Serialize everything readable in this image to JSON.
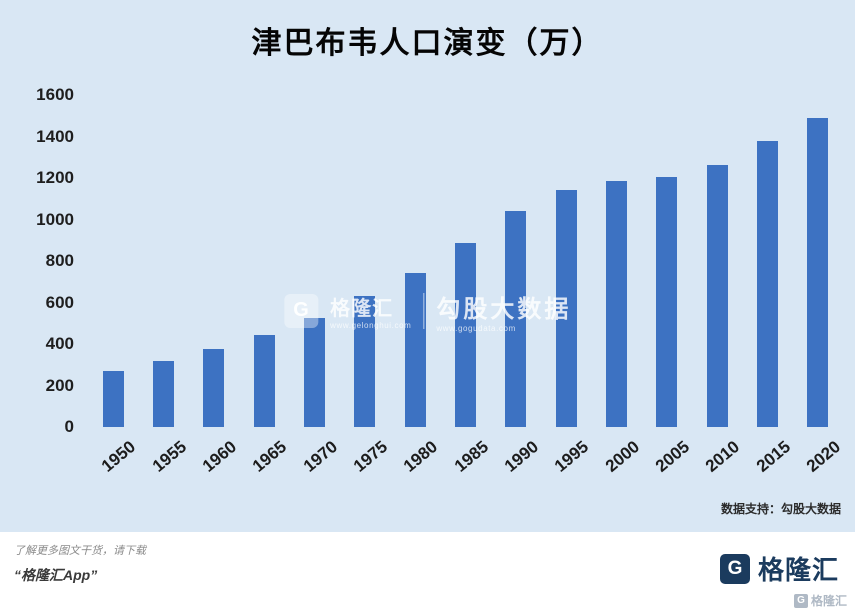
{
  "title": "津巴布韦人口演变（万）",
  "chart_data": {
    "type": "bar",
    "title": "津巴布韦人口演变（万）",
    "categories": [
      "1950",
      "1955",
      "1960",
      "1965",
      "1970",
      "1975",
      "1980",
      "1985",
      "1990",
      "1995",
      "2000",
      "2005",
      "2010",
      "2015",
      "2020"
    ],
    "values": [
      270,
      320,
      375,
      445,
      525,
      630,
      740,
      885,
      1040,
      1140,
      1185,
      1205,
      1265,
      1380,
      1490
    ],
    "xlabel": "",
    "ylabel": "",
    "ylim": [
      0,
      1600
    ],
    "yticks": [
      0,
      200,
      400,
      600,
      800,
      1000,
      1200,
      1400,
      1600
    ],
    "bar_color": "#3d72c2",
    "background": "#d9e7f4",
    "grid": false,
    "legend": "none"
  },
  "watermark": {
    "logo_letter": "G",
    "brand": "格隆汇",
    "url_left": "www.gelonghui.com",
    "partner": "勾股大数据",
    "url_right": "www.gogudata.com"
  },
  "data_support": "数据支持：勾股大数据",
  "footer": {
    "line1": "了解更多图文干货，请下载",
    "line2": "“格隆汇App”",
    "logo_letter": "G",
    "brand": "格隆汇"
  }
}
